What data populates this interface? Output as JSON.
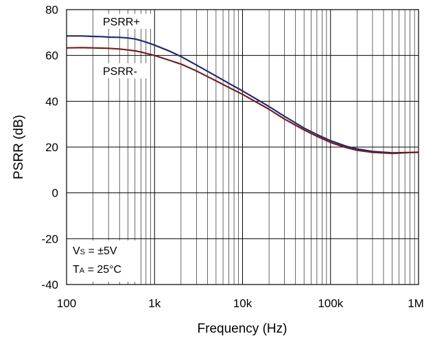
{
  "chart_data": {
    "type": "line",
    "title": "",
    "xlabel": "Frequency (Hz)",
    "ylabel": "PSRR (dB)",
    "xscale": "log",
    "xlim": [
      100,
      1000000
    ],
    "ylim": [
      -40,
      80
    ],
    "grid": true,
    "x_tick_labels": [
      {
        "value": 100,
        "label": "100"
      },
      {
        "value": 1000,
        "label": "1k"
      },
      {
        "value": 10000,
        "label": "10k"
      },
      {
        "value": 100000,
        "label": "100k"
      },
      {
        "value": 1000000,
        "label": "1M"
      }
    ],
    "y_tick_labels": [
      {
        "value": 80,
        "label": "80"
      },
      {
        "value": 60,
        "label": "60"
      },
      {
        "value": 40,
        "label": "40"
      },
      {
        "value": 20,
        "label": "20"
      },
      {
        "value": 0,
        "label": "0"
      },
      {
        "value": -20,
        "label": "-20"
      },
      {
        "value": -40,
        "label": "-40"
      }
    ],
    "series": [
      {
        "name": "PSRR+",
        "color": "#1f2a7a",
        "x": [
          100,
          150,
          200,
          250,
          300,
          400,
          500,
          600,
          700,
          800,
          1000,
          1500,
          2000,
          3000,
          5000,
          7000,
          10000,
          20000,
          30000,
          50000,
          70000,
          100000,
          150000,
          200000,
          300000,
          500000,
          700000,
          1000000
        ],
        "y": [
          68.5,
          68.5,
          68.3,
          68.2,
          68.0,
          67.9,
          67.6,
          67.2,
          66.5,
          65.8,
          64.5,
          61.8,
          59.5,
          55.8,
          51.0,
          47.8,
          44.5,
          37.7,
          33.4,
          28.3,
          25.5,
          22.8,
          20.4,
          19.2,
          18.1,
          17.5,
          17.6,
          17.7
        ]
      },
      {
        "name": "PSRR-",
        "color": "#7a1a1a",
        "x": [
          100,
          150,
          200,
          250,
          300,
          400,
          500,
          600,
          700,
          800,
          1000,
          1500,
          2000,
          3000,
          5000,
          7000,
          10000,
          20000,
          30000,
          50000,
          70000,
          100000,
          150000,
          200000,
          300000,
          500000,
          700000,
          1000000
        ],
        "y": [
          63.3,
          63.4,
          63.3,
          63.2,
          63.1,
          62.8,
          62.4,
          62.0,
          61.5,
          60.9,
          60.0,
          57.8,
          56.2,
          53.2,
          48.9,
          46.0,
          43.0,
          36.5,
          32.2,
          27.5,
          24.7,
          22.0,
          19.8,
          18.6,
          17.7,
          17.2,
          17.5,
          17.8
        ]
      }
    ],
    "series_labels": [
      "PSRR+",
      "PSRR-"
    ],
    "annotation": {
      "line1": {
        "prefix": "V",
        "sub": "S",
        "suffix": " = ±5V"
      },
      "line2": {
        "prefix": "T",
        "sub": "A",
        "suffix": " = 25°C"
      }
    }
  }
}
